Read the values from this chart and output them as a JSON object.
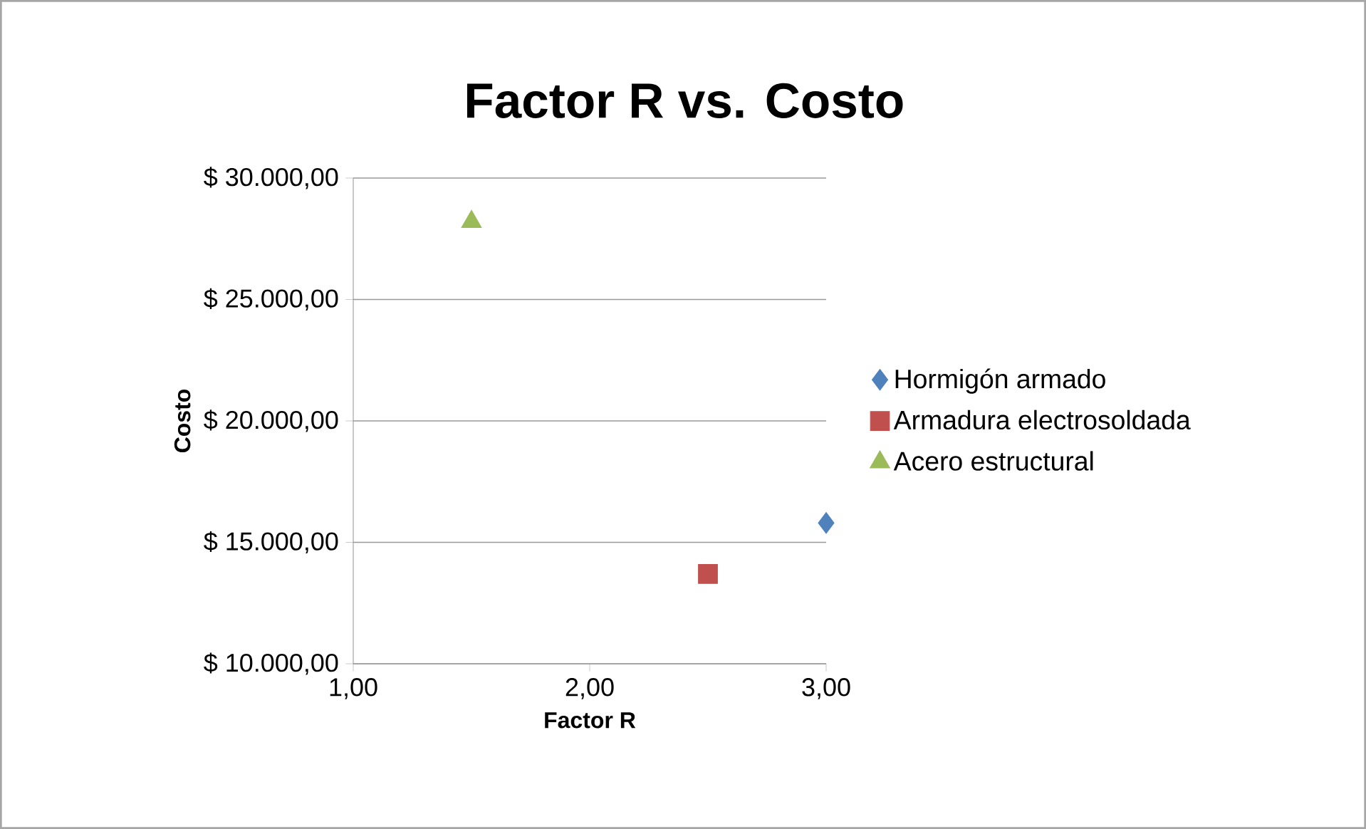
{
  "chart_data": {
    "type": "scatter",
    "title": "Factor R vs. Costo",
    "xlabel": "Factor R",
    "ylabel": "Costo",
    "xlim": [
      1,
      3
    ],
    "xticks": [
      {
        "value": 1,
        "label": "1,00"
      },
      {
        "value": 2,
        "label": "2,00"
      },
      {
        "value": 3,
        "label": "3,00"
      }
    ],
    "ylim": [
      10000,
      30000
    ],
    "yticks": [
      {
        "value": 10000,
        "label": "$ 10.000,00"
      },
      {
        "value": 15000,
        "label": "$ 15.000,00"
      },
      {
        "value": 20000,
        "label": "$ 20.000,00"
      },
      {
        "value": 25000,
        "label": "$ 25.000,00"
      },
      {
        "value": 30000,
        "label": "$ 30.000,00"
      }
    ],
    "grid": "y",
    "legend": "right",
    "series": [
      {
        "name": "Hormigón armado",
        "color": "#4f81bd",
        "marker": "diamond",
        "x": [
          3.0
        ],
        "values": [
          15800
        ]
      },
      {
        "name": "Armadura electrosoldada",
        "color": "#c0504d",
        "marker": "square",
        "x": [
          2.5
        ],
        "values": [
          13700
        ]
      },
      {
        "name": "Acero estructural",
        "color": "#9bbb59",
        "marker": "triangle",
        "x": [
          1.5
        ],
        "values": [
          28200
        ]
      }
    ]
  }
}
